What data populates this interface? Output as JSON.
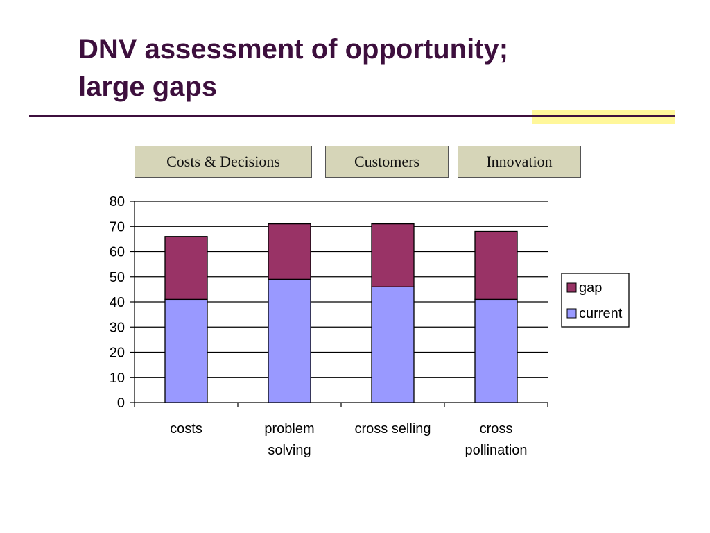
{
  "slide": {
    "title_lines": [
      "DNV assessment of opportunity;",
      "large gaps"
    ],
    "category_boxes": [
      "Costs & Decisions",
      "Customers",
      "Innovation"
    ]
  },
  "colors": {
    "title": "#3d0f3d",
    "current": "#9999ff",
    "gap": "#993366",
    "box_fill": "#d6d5b8",
    "highlight": "#fff79a"
  },
  "chart_data": {
    "type": "bar",
    "stacked": true,
    "categories": [
      [
        "costs"
      ],
      [
        "problem",
        "solving"
      ],
      [
        "cross selling"
      ],
      [
        "cross",
        "pollination"
      ]
    ],
    "series": [
      {
        "name": "current",
        "values": [
          41,
          49,
          46,
          41
        ]
      },
      {
        "name": "gap",
        "values": [
          25,
          22,
          25,
          27
        ]
      }
    ],
    "ylim": [
      0,
      80
    ],
    "yticks": [
      0,
      10,
      20,
      30,
      40,
      50,
      60,
      70,
      80
    ],
    "grid": true,
    "legend": {
      "placement": "right",
      "entries": [
        "gap",
        "current"
      ]
    }
  }
}
